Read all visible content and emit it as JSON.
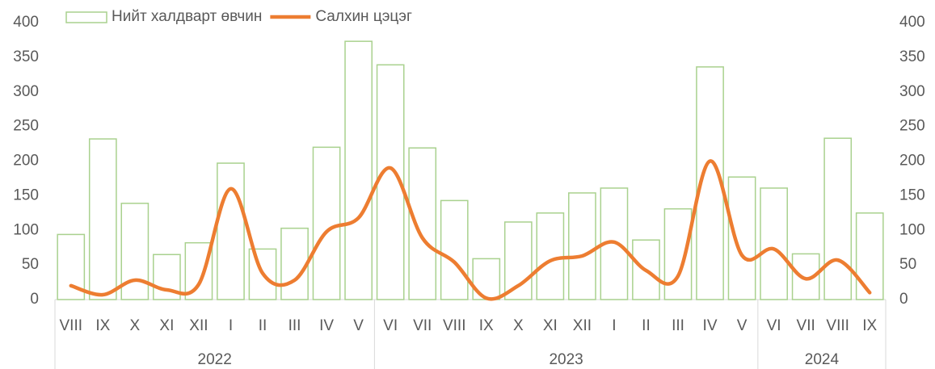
{
  "chart_data": {
    "type": "bar-line",
    "categories": [
      "VIII",
      "IX",
      "X",
      "XI",
      "XII",
      "I",
      "II",
      "III",
      "IV",
      "V",
      "VI",
      "VII",
      "VIII",
      "IX",
      "X",
      "XI",
      "XII",
      "I",
      "II",
      "III",
      "IV",
      "V",
      "VI",
      "VII",
      "VIII",
      "IX"
    ],
    "groups": [
      {
        "label": "2022",
        "span": 10
      },
      {
        "label": "2023",
        "span": 12
      },
      {
        "label": "2024",
        "span": 4
      }
    ],
    "series": [
      {
        "name": "Нийт халдварт өвчин",
        "type": "bar",
        "color": "#a9d18e",
        "values": [
          94,
          232,
          139,
          65,
          82,
          197,
          73,
          103,
          220,
          373,
          339,
          219,
          143,
          59,
          112,
          125,
          154,
          161,
          86,
          131,
          336,
          177,
          161,
          66,
          233,
          125
        ]
      },
      {
        "name": "Салхин цэцэг",
        "type": "line",
        "axis": "y2",
        "color": "#ed7d31",
        "values": [
          20,
          7,
          28,
          14,
          22,
          160,
          38,
          28,
          98,
          118,
          190,
          89,
          54,
          2,
          20,
          56,
          63,
          83,
          42,
          34,
          200,
          64,
          73,
          30,
          57,
          10
        ]
      }
    ],
    "ylim": [
      0,
      400
    ],
    "yticks": [
      0,
      50,
      100,
      150,
      200,
      250,
      300,
      350,
      400
    ],
    "y2lim": [
      0,
      400
    ],
    "y2ticks": [
      0,
      50,
      100,
      150,
      200,
      250,
      300,
      350,
      400
    ],
    "legend": "top"
  }
}
